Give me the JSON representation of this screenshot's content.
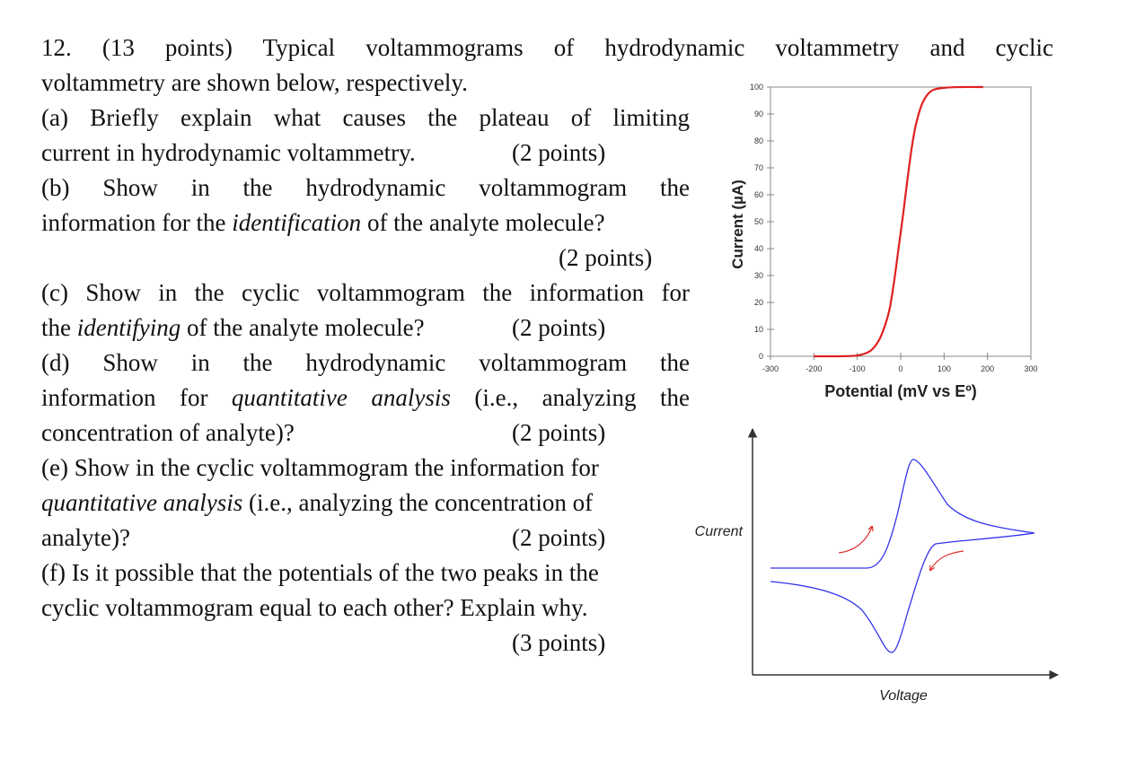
{
  "question": {
    "line1": "12. (13 points) Typical voltammograms of hydrodynamic voltammetry and cyclic",
    "line2": "voltammetry are shown below, respectively.",
    "a": {
      "l1": "(a) Briefly explain what causes the plateau of limiting",
      "l2": "current in hydrodynamic voltammetry.",
      "points": "(2 points)"
    },
    "b": {
      "l1": "(b) Show in the hydrodynamic voltammogram the",
      "l2_pre": "information for the ",
      "l2_em": "identification",
      "l2_post": " of the analyte molecule?",
      "points": "(2 points)"
    },
    "c": {
      "l1": "(c) Show in the cyclic voltammogram the information for",
      "l2_pre": "the ",
      "l2_em": "identifying",
      "l2_post": " of the analyte molecule?",
      "points": "(2 points)"
    },
    "d": {
      "l1": "(d) Show in the hydrodynamic voltammogram the",
      "l2_pre": "information for ",
      "l2_em": "quantitative analysis",
      "l2_post": " (i.e., analyzing the",
      "l3": "concentration of analyte)?",
      "points": "(2 points)"
    },
    "e": {
      "l1": "(e) Show in the cyclic voltammogram the information for",
      "l2_em": "quantitative analysis",
      "l2_post": " (i.e., analyzing the concentration of",
      "l3": "analyte)?",
      "points": "(2 points)"
    },
    "f": {
      "l1": "(f) Is it possible that the potentials of the two peaks in the",
      "l2": "cyclic voltammogram equal to each other? Explain why.",
      "points": "(3 points)"
    }
  },
  "chart_data": [
    {
      "type": "line",
      "xlabel": "Potential (mV vs Eº)",
      "ylabel": "Current (µA)",
      "xlim": [
        -300,
        300
      ],
      "ylim": [
        0,
        100
      ],
      "x_ticks": [
        -300,
        -200,
        -100,
        0,
        100,
        200,
        300
      ],
      "y_ticks": [
        0,
        10,
        20,
        30,
        40,
        50,
        60,
        70,
        80,
        90,
        100
      ],
      "series": [
        {
          "color": "#e02020",
          "x": [
            -200,
            -150,
            -100,
            -70,
            -50,
            -35,
            -25,
            -15,
            -5,
            5,
            15,
            25,
            35,
            50,
            70,
            100,
            140,
            190
          ],
          "y": [
            0,
            0,
            0.3,
            2,
            6,
            12,
            18,
            28,
            40,
            52,
            65,
            77,
            86,
            94,
            98.5,
            99.7,
            100,
            100
          ]
        }
      ]
    },
    {
      "type": "line",
      "xlabel": "Voltage",
      "ylabel": "Current",
      "curve_color": "#3333ee",
      "arrow_color": "#e03030"
    }
  ]
}
